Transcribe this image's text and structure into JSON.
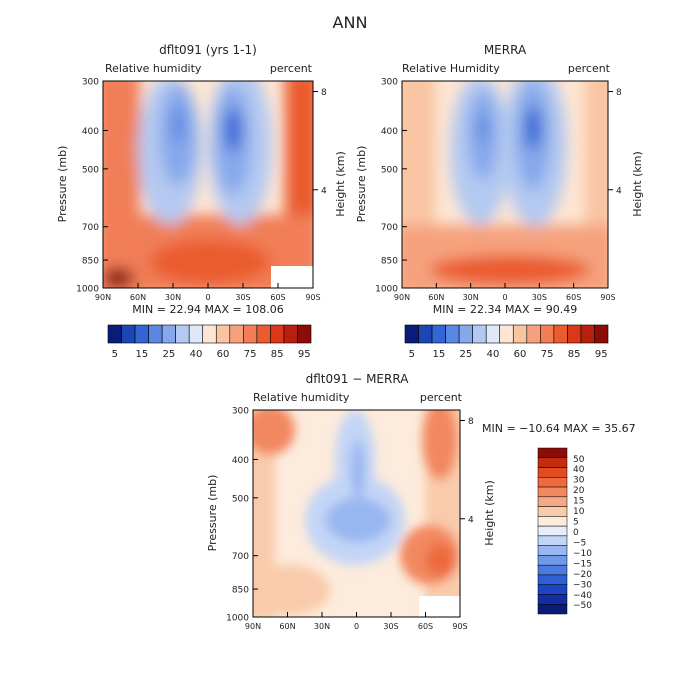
{
  "main_title": "ANN",
  "chart_data": [
    {
      "id": "model",
      "type": "heatmap",
      "title": "dflt091 (yrs 1-1)",
      "left_label": "Relative humidity",
      "right_label": "percent",
      "ylabel": "Pressure (mb)",
      "y2label": "Height (km)",
      "xticks": [
        "90N",
        "60N",
        "30N",
        "0",
        "30S",
        "60S",
        "90S"
      ],
      "yticks": [
        {
          "p": 300,
          "label": "300"
        },
        {
          "p": 400,
          "label": "400"
        },
        {
          "p": 500,
          "label": "500"
        },
        {
          "p": 700,
          "label": "700"
        },
        {
          "p": 850,
          "label": "850"
        },
        {
          "p": 1000,
          "label": "1000"
        }
      ],
      "y2ticks": [
        {
          "km": 8,
          "label": "8"
        },
        {
          "km": 4,
          "label": "4"
        }
      ],
      "xlim": [
        90,
        -90
      ],
      "ylim": [
        300,
        1000
      ],
      "stats": "MIN =   22.94   MAX =  108.06"
    },
    {
      "id": "obs",
      "type": "heatmap",
      "title": "MERRA",
      "left_label": "Relative Humidity",
      "right_label": "percent",
      "ylabel": "Pressure (mb)",
      "y2label": "Height (km)",
      "xticks": [
        "90N",
        "60N",
        "30N",
        "0",
        "30S",
        "60S",
        "90S"
      ],
      "yticks": [
        {
          "p": 300,
          "label": "300"
        },
        {
          "p": 400,
          "label": "400"
        },
        {
          "p": 500,
          "label": "500"
        },
        {
          "p": 700,
          "label": "700"
        },
        {
          "p": 850,
          "label": "850"
        },
        {
          "p": 1000,
          "label": "1000"
        }
      ],
      "y2ticks": [
        {
          "km": 8,
          "label": "8"
        },
        {
          "km": 4,
          "label": "4"
        }
      ],
      "xlim": [
        90,
        -90
      ],
      "ylim": [
        300,
        1000
      ],
      "stats": "MIN =   22.34   MAX =   90.49"
    },
    {
      "id": "diff",
      "type": "heatmap",
      "title": "dflt091 − MERRA",
      "left_label": "Relative humidity",
      "right_label": "percent",
      "ylabel": "Pressure (mb)",
      "y2label": "Height (km)",
      "xticks": [
        "90N",
        "60N",
        "30N",
        "0",
        "30S",
        "60S",
        "90S"
      ],
      "yticks": [
        {
          "p": 300,
          "label": "300"
        },
        {
          "p": 400,
          "label": "400"
        },
        {
          "p": 500,
          "label": "500"
        },
        {
          "p": 700,
          "label": "700"
        },
        {
          "p": 850,
          "label": "850"
        },
        {
          "p": 1000,
          "label": "1000"
        }
      ],
      "y2ticks": [
        {
          "km": 8,
          "label": "8"
        },
        {
          "km": 4,
          "label": "4"
        }
      ],
      "xlim": [
        90,
        -90
      ],
      "ylim": [
        300,
        1000
      ],
      "stats": "MIN = −10.64   MAX =  35.67"
    }
  ],
  "colorbar_main": {
    "colors": [
      "#0a1c7a",
      "#1b46b4",
      "#3365d6",
      "#5a87e2",
      "#86a8ea",
      "#b4c9f1",
      "#dde8f8",
      "#fde6d3",
      "#f9c4a2",
      "#f6a17d",
      "#f17e57",
      "#ea5b2f",
      "#d9391a",
      "#b81f0e",
      "#8c0c07"
    ],
    "labels": [
      "5",
      "15",
      "25",
      "40",
      "60",
      "75",
      "85",
      "95"
    ]
  },
  "colorbar_diff": {
    "colors": [
      "#0a1c7a",
      "#122ea0",
      "#1d44c2",
      "#2e5fd8",
      "#4a7ae2",
      "#6f98ea",
      "#98b6f0",
      "#c3d5f6",
      "#e6eefb",
      "#fdebdc",
      "#f9cbab",
      "#f5a885",
      "#f28860",
      "#ec6a3d",
      "#e04b21",
      "#c42c10",
      "#8c0c07"
    ],
    "labels": [
      "50",
      "40",
      "30",
      "20",
      "15",
      "10",
      "5",
      "0",
      "−5",
      "−10",
      "−15",
      "−20",
      "−30",
      "−40",
      "−50"
    ]
  }
}
